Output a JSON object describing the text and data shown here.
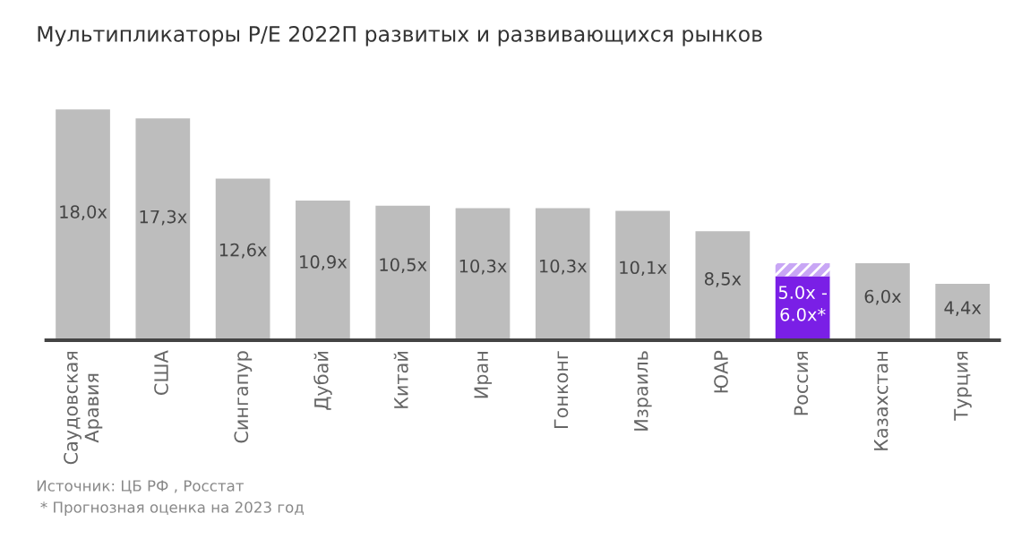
{
  "chart_data": {
    "type": "bar",
    "title": "Мультипликаторы P/E 2022П развитых и развивающихся рынков",
    "categories": [
      "Саудовская\nАравия",
      "США",
      "Сингапур",
      "Дубай",
      "Китай",
      "Иран",
      "Гонконг",
      "Израиль",
      "ЮАР",
      "Россия",
      "Казахстан",
      "Турция"
    ],
    "stacked": true,
    "series": [
      {
        "values": [
          18.0,
          17.3,
          12.6,
          10.9,
          10.5,
          10.3,
          10.3,
          10.1,
          8.5,
          5.0,
          6.0,
          4.4
        ],
        "colors": [
          "#bdbdbd",
          "#bdbdbd",
          "#bdbdbd",
          "#bdbdbd",
          "#bdbdbd",
          "#bdbdbd",
          "#bdbdbd",
          "#bdbdbd",
          "#bdbdbd",
          "#7a1fe6",
          "#bdbdbd",
          "#bdbdbd"
        ],
        "value_labels": [
          "18,0x",
          "17,3x",
          "12,6x",
          "10,9x",
          "10,5x",
          "10,3x",
          "10,3x",
          "10,1x",
          "8,5x",
          "5.0x -\n6.0x*",
          "6,0x",
          "4,4x"
        ]
      },
      {
        "values": [
          null,
          null,
          null,
          null,
          null,
          null,
          null,
          null,
          null,
          1.0,
          null,
          null
        ],
        "color": "#c8a6f5"
      }
    ],
    "annotations": [
      "Источник: ЦБ РФ , Росстат",
      "* Прогнозная оценка на 2023 год"
    ]
  }
}
